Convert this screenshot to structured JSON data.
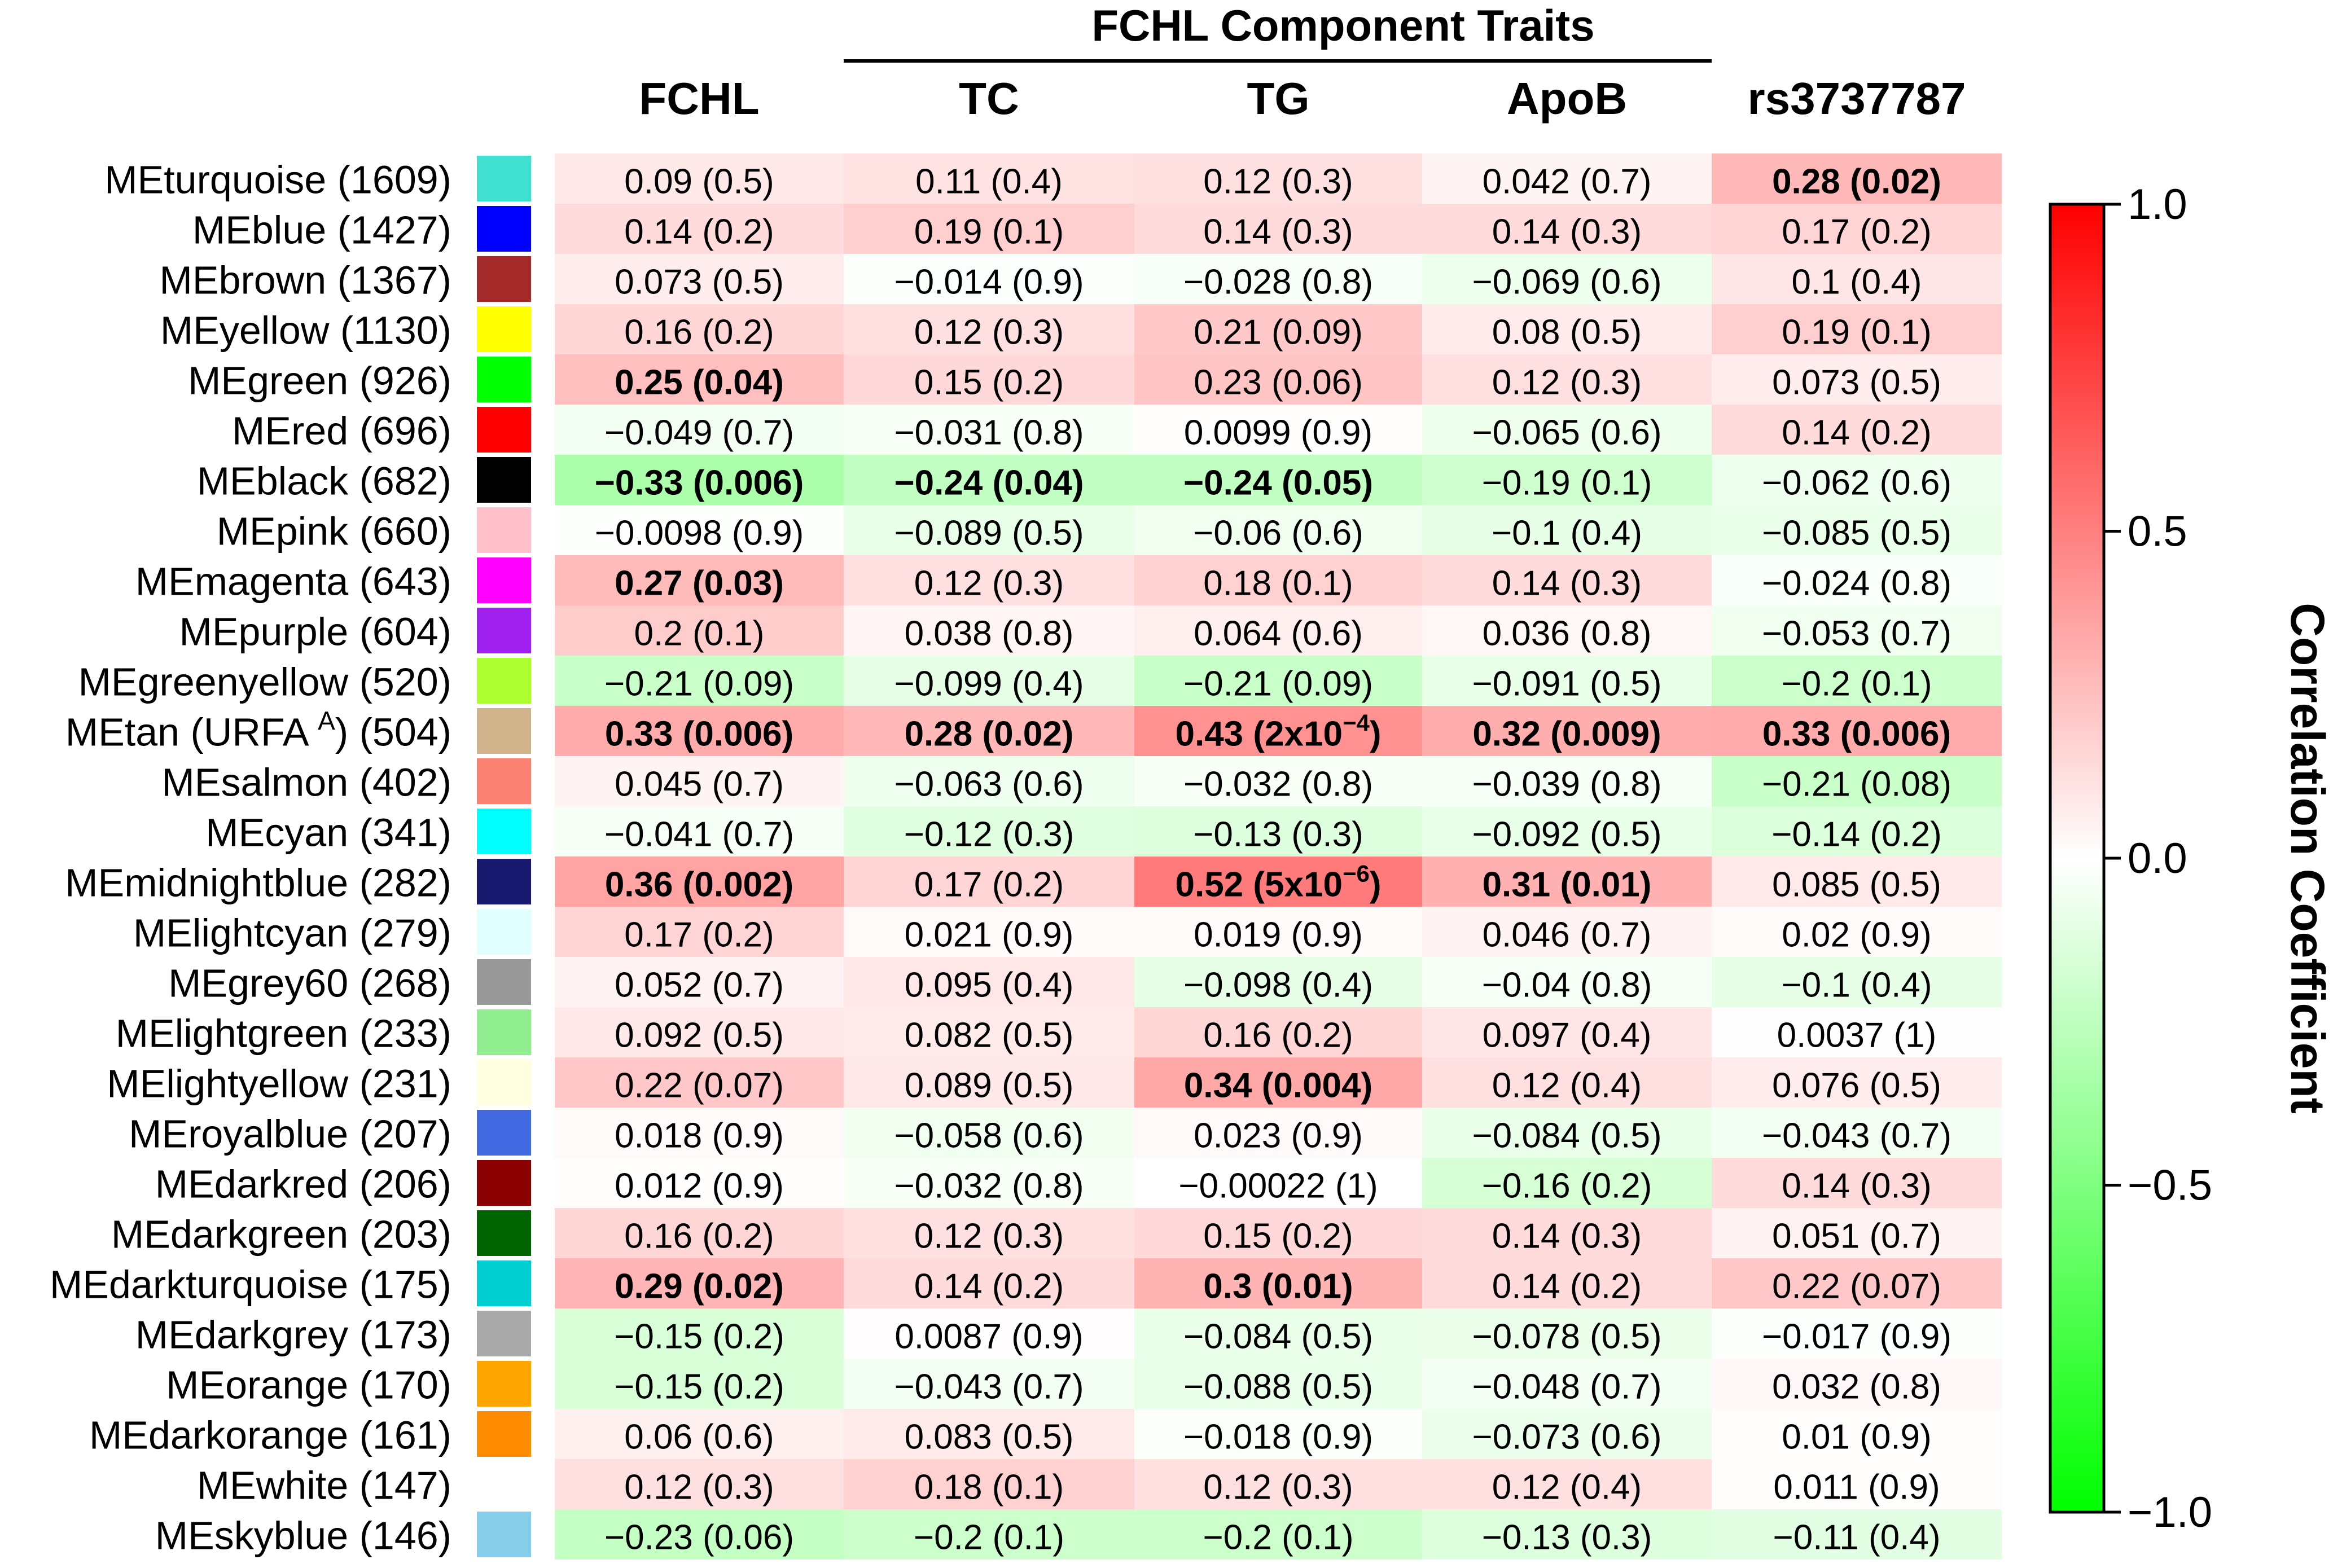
{
  "chart_data": {
    "type": "heatmap",
    "title": "",
    "group_header": "FCHL Component Traits",
    "columns": [
      "FCHL",
      "TC",
      "TG",
      "ApoB",
      "rs3737787"
    ],
    "rows": [
      {
        "label": "MEturquoise (1609)",
        "swatch": "#40e0d0",
        "values": [
          0.09,
          0.11,
          0.12,
          0.042,
          0.28
        ],
        "text": [
          "0.09 (0.5)",
          "0.11 (0.4)",
          "0.12 (0.3)",
          "0.042 (0.7)",
          "0.28 (0.02)"
        ],
        "bold": [
          false,
          false,
          false,
          false,
          true
        ]
      },
      {
        "label": "MEblue (1427)",
        "swatch": "#0000ff",
        "values": [
          0.14,
          0.19,
          0.14,
          0.14,
          0.17
        ],
        "text": [
          "0.14 (0.2)",
          "0.19 (0.1)",
          "0.14 (0.3)",
          "0.14 (0.3)",
          "0.17 (0.2)"
        ],
        "bold": [
          false,
          false,
          false,
          false,
          false
        ]
      },
      {
        "label": "MEbrown (1367)",
        "swatch": "#a52a2a",
        "values": [
          0.073,
          -0.014,
          -0.028,
          -0.069,
          0.1
        ],
        "text": [
          "0.073 (0.5)",
          "−0.014 (0.9)",
          "−0.028 (0.8)",
          "−0.069 (0.6)",
          "0.1 (0.4)"
        ],
        "bold": [
          false,
          false,
          false,
          false,
          false
        ]
      },
      {
        "label": "MEyellow (1130)",
        "swatch": "#ffff00",
        "values": [
          0.16,
          0.12,
          0.21,
          0.08,
          0.19
        ],
        "text": [
          "0.16 (0.2)",
          "0.12 (0.3)",
          "0.21 (0.09)",
          "0.08 (0.5)",
          "0.19 (0.1)"
        ],
        "bold": [
          false,
          false,
          false,
          false,
          false
        ]
      },
      {
        "label": "MEgreen (926)",
        "swatch": "#00ff00",
        "values": [
          0.25,
          0.15,
          0.23,
          0.12,
          0.073
        ],
        "text": [
          "0.25 (0.04)",
          "0.15 (0.2)",
          "0.23 (0.06)",
          "0.12 (0.3)",
          "0.073 (0.5)"
        ],
        "bold": [
          true,
          false,
          false,
          false,
          false
        ]
      },
      {
        "label": "MEred (696)",
        "swatch": "#ff0000",
        "values": [
          -0.049,
          -0.031,
          0.0099,
          -0.065,
          0.14
        ],
        "text": [
          "−0.049 (0.7)",
          "−0.031 (0.8)",
          "0.0099 (0.9)",
          "−0.065 (0.6)",
          "0.14 (0.2)"
        ],
        "bold": [
          false,
          false,
          false,
          false,
          false
        ]
      },
      {
        "label": "MEblack (682)",
        "swatch": "#000000",
        "values": [
          -0.33,
          -0.24,
          -0.24,
          -0.19,
          -0.062
        ],
        "text": [
          "−0.33 (0.006)",
          "−0.24 (0.04)",
          "−0.24 (0.05)",
          "−0.19 (0.1)",
          "−0.062 (0.6)"
        ],
        "bold": [
          true,
          true,
          true,
          false,
          false
        ]
      },
      {
        "label": "MEpink (660)",
        "swatch": "#ffc0cb",
        "values": [
          -0.0098,
          -0.089,
          -0.06,
          -0.1,
          -0.085
        ],
        "text": [
          "−0.0098 (0.9)",
          "−0.089 (0.5)",
          "−0.06 (0.6)",
          "−0.1 (0.4)",
          "−0.085 (0.5)"
        ],
        "bold": [
          false,
          false,
          false,
          false,
          false
        ]
      },
      {
        "label": "MEmagenta (643)",
        "swatch": "#ff00ff",
        "values": [
          0.27,
          0.12,
          0.18,
          0.14,
          -0.024
        ],
        "text": [
          "0.27 (0.03)",
          "0.12 (0.3)",
          "0.18 (0.1)",
          "0.14 (0.3)",
          "−0.024 (0.8)"
        ],
        "bold": [
          true,
          false,
          false,
          false,
          false
        ]
      },
      {
        "label": "MEpurple (604)",
        "swatch": "#a020f0",
        "values": [
          0.2,
          0.038,
          0.064,
          0.036,
          -0.053
        ],
        "text": [
          "0.2 (0.1)",
          "0.038 (0.8)",
          "0.064 (0.6)",
          "0.036 (0.8)",
          "−0.053 (0.7)"
        ],
        "bold": [
          false,
          false,
          false,
          false,
          false
        ]
      },
      {
        "label": "MEgreenyellow (520)",
        "swatch": "#adff2f",
        "values": [
          -0.21,
          -0.099,
          -0.21,
          -0.091,
          -0.2
        ],
        "text": [
          "−0.21 (0.09)",
          "−0.099 (0.4)",
          "−0.21 (0.09)",
          "−0.091 (0.5)",
          "−0.2 (0.1)"
        ],
        "bold": [
          false,
          false,
          false,
          false,
          false
        ]
      },
      {
        "label": "MEtan (URFA ",
        "label_sup": "A",
        "label_tail": ") (504)",
        "swatch": "#d2b48c",
        "values": [
          0.33,
          0.28,
          0.43,
          0.32,
          0.33
        ],
        "text": [
          "0.33 (0.006)",
          "0.28 (0.02)",
          "0.43 (2x10",
          "0.32 (0.009)",
          "0.33 (0.006)"
        ],
        "text_sup": [
          "",
          "",
          "−4",
          "",
          ""
        ],
        "text_tail": [
          "",
          "",
          ")",
          "",
          ""
        ],
        "bold": [
          true,
          true,
          true,
          true,
          true
        ]
      },
      {
        "label": "MEsalmon (402)",
        "swatch": "#fa8072",
        "values": [
          0.045,
          -0.063,
          -0.032,
          -0.039,
          -0.21
        ],
        "text": [
          "0.045 (0.7)",
          "−0.063 (0.6)",
          "−0.032 (0.8)",
          "−0.039 (0.8)",
          "−0.21 (0.08)"
        ],
        "bold": [
          false,
          false,
          false,
          false,
          false
        ]
      },
      {
        "label": "MEcyan (341)",
        "swatch": "#00ffff",
        "values": [
          -0.041,
          -0.12,
          -0.13,
          -0.092,
          -0.14
        ],
        "text": [
          "−0.041 (0.7)",
          "−0.12 (0.3)",
          "−0.13 (0.3)",
          "−0.092 (0.5)",
          "−0.14 (0.2)"
        ],
        "bold": [
          false,
          false,
          false,
          false,
          false
        ]
      },
      {
        "label": "MEmidnightblue (282)",
        "swatch": "#191970",
        "values": [
          0.36,
          0.17,
          0.52,
          0.31,
          0.085
        ],
        "text": [
          "0.36 (0.002)",
          "0.17 (0.2)",
          "0.52 (5x10",
          "0.31 (0.01)",
          "0.085 (0.5)"
        ],
        "text_sup": [
          "",
          "",
          "−6",
          "",
          ""
        ],
        "text_tail": [
          "",
          "",
          ")",
          "",
          ""
        ],
        "bold": [
          true,
          false,
          true,
          true,
          false
        ]
      },
      {
        "label": "MElightcyan (279)",
        "swatch": "#e0ffff",
        "values": [
          0.17,
          0.021,
          0.019,
          0.046,
          0.02
        ],
        "text": [
          "0.17 (0.2)",
          "0.021 (0.9)",
          "0.019 (0.9)",
          "0.046 (0.7)",
          "0.02 (0.9)"
        ],
        "bold": [
          false,
          false,
          false,
          false,
          false
        ]
      },
      {
        "label": "MEgrey60 (268)",
        "swatch": "#999999",
        "values": [
          0.052,
          0.095,
          -0.098,
          -0.04,
          -0.1
        ],
        "text": [
          "0.052 (0.7)",
          "0.095 (0.4)",
          "−0.098 (0.4)",
          "−0.04 (0.8)",
          "−0.1 (0.4)"
        ],
        "bold": [
          false,
          false,
          false,
          false,
          false
        ]
      },
      {
        "label": "MElightgreen (233)",
        "swatch": "#90ee90",
        "values": [
          0.092,
          0.082,
          0.16,
          0.097,
          0.0037
        ],
        "text": [
          "0.092 (0.5)",
          "0.082 (0.5)",
          "0.16 (0.2)",
          "0.097 (0.4)",
          "0.0037 (1)"
        ],
        "bold": [
          false,
          false,
          false,
          false,
          false
        ]
      },
      {
        "label": "MElightyellow (231)",
        "swatch": "#ffffe0",
        "values": [
          0.22,
          0.089,
          0.34,
          0.12,
          0.076
        ],
        "text": [
          "0.22 (0.07)",
          "0.089 (0.5)",
          "0.34 (0.004)",
          "0.12 (0.4)",
          "0.076 (0.5)"
        ],
        "bold": [
          false,
          false,
          true,
          false,
          false
        ]
      },
      {
        "label": "MEroyalblue (207)",
        "swatch": "#4169e1",
        "values": [
          0.018,
          -0.058,
          0.023,
          -0.084,
          -0.043
        ],
        "text": [
          "0.018 (0.9)",
          "−0.058 (0.6)",
          "0.023 (0.9)",
          "−0.084 (0.5)",
          "−0.043 (0.7)"
        ],
        "bold": [
          false,
          false,
          false,
          false,
          false
        ]
      },
      {
        "label": "MEdarkred (206)",
        "swatch": "#8b0000",
        "values": [
          0.012,
          -0.032,
          -0.00022,
          -0.16,
          0.14
        ],
        "text": [
          "0.012 (0.9)",
          "−0.032 (0.8)",
          "−0.00022 (1)",
          "−0.16 (0.2)",
          "0.14 (0.3)"
        ],
        "bold": [
          false,
          false,
          false,
          false,
          false
        ]
      },
      {
        "label": "MEdarkgreen (203)",
        "swatch": "#006400",
        "values": [
          0.16,
          0.12,
          0.15,
          0.14,
          0.051
        ],
        "text": [
          "0.16 (0.2)",
          "0.12 (0.3)",
          "0.15 (0.2)",
          "0.14 (0.3)",
          "0.051 (0.7)"
        ],
        "bold": [
          false,
          false,
          false,
          false,
          false
        ]
      },
      {
        "label": "MEdarkturquoise (175)",
        "swatch": "#00ced1",
        "values": [
          0.29,
          0.14,
          0.3,
          0.14,
          0.22
        ],
        "text": [
          "0.29 (0.02)",
          "0.14 (0.2)",
          "0.3 (0.01)",
          "0.14 (0.2)",
          "0.22 (0.07)"
        ],
        "bold": [
          true,
          false,
          true,
          false,
          false
        ]
      },
      {
        "label": "MEdarkgrey (173)",
        "swatch": "#a9a9a9",
        "values": [
          -0.15,
          0.0087,
          -0.084,
          -0.078,
          -0.017
        ],
        "text": [
          "−0.15 (0.2)",
          "0.0087 (0.9)",
          "−0.084 (0.5)",
          "−0.078 (0.5)",
          "−0.017 (0.9)"
        ],
        "bold": [
          false,
          false,
          false,
          false,
          false
        ]
      },
      {
        "label": "MEorange (170)",
        "swatch": "#ffa500",
        "values": [
          -0.15,
          -0.043,
          -0.088,
          -0.048,
          0.032
        ],
        "text": [
          "−0.15 (0.2)",
          "−0.043 (0.7)",
          "−0.088 (0.5)",
          "−0.048 (0.7)",
          "0.032 (0.8)"
        ],
        "bold": [
          false,
          false,
          false,
          false,
          false
        ]
      },
      {
        "label": "MEdarkorange (161)",
        "swatch": "#ff8c00",
        "values": [
          0.06,
          0.083,
          -0.018,
          -0.073,
          0.01
        ],
        "text": [
          "0.06 (0.6)",
          "0.083 (0.5)",
          "−0.018 (0.9)",
          "−0.073 (0.6)",
          "0.01 (0.9)"
        ],
        "bold": [
          false,
          false,
          false,
          false,
          false
        ]
      },
      {
        "label": "MEwhite (147)",
        "swatch": "#ffffff",
        "values": [
          0.12,
          0.18,
          0.12,
          0.12,
          0.011
        ],
        "text": [
          "0.12 (0.3)",
          "0.18 (0.1)",
          "0.12 (0.3)",
          "0.12 (0.4)",
          "0.011 (0.9)"
        ],
        "bold": [
          false,
          false,
          false,
          false,
          false
        ]
      },
      {
        "label": "MEskyblue (146)",
        "swatch": "#87ceeb",
        "values": [
          -0.23,
          -0.2,
          -0.2,
          -0.13,
          -0.11
        ],
        "text": [
          "−0.23 (0.06)",
          "−0.2 (0.1)",
          "−0.2 (0.1)",
          "−0.13 (0.3)",
          "−0.11 (0.4)"
        ],
        "bold": [
          false,
          false,
          false,
          false,
          false
        ]
      }
    ],
    "colorbar": {
      "label": "Correlation Coefficient",
      "range": [
        -1.0,
        1.0
      ],
      "ticks": [
        1.0,
        0.5,
        0.0,
        -0.5,
        -1.0
      ],
      "tick_labels": [
        "1.0",
        "0.5",
        "0.0",
        "−0.5",
        "−1.0"
      ],
      "colors": {
        "negative": "#00ff00",
        "zero": "#ffffff",
        "positive": "#ff0000"
      }
    }
  }
}
